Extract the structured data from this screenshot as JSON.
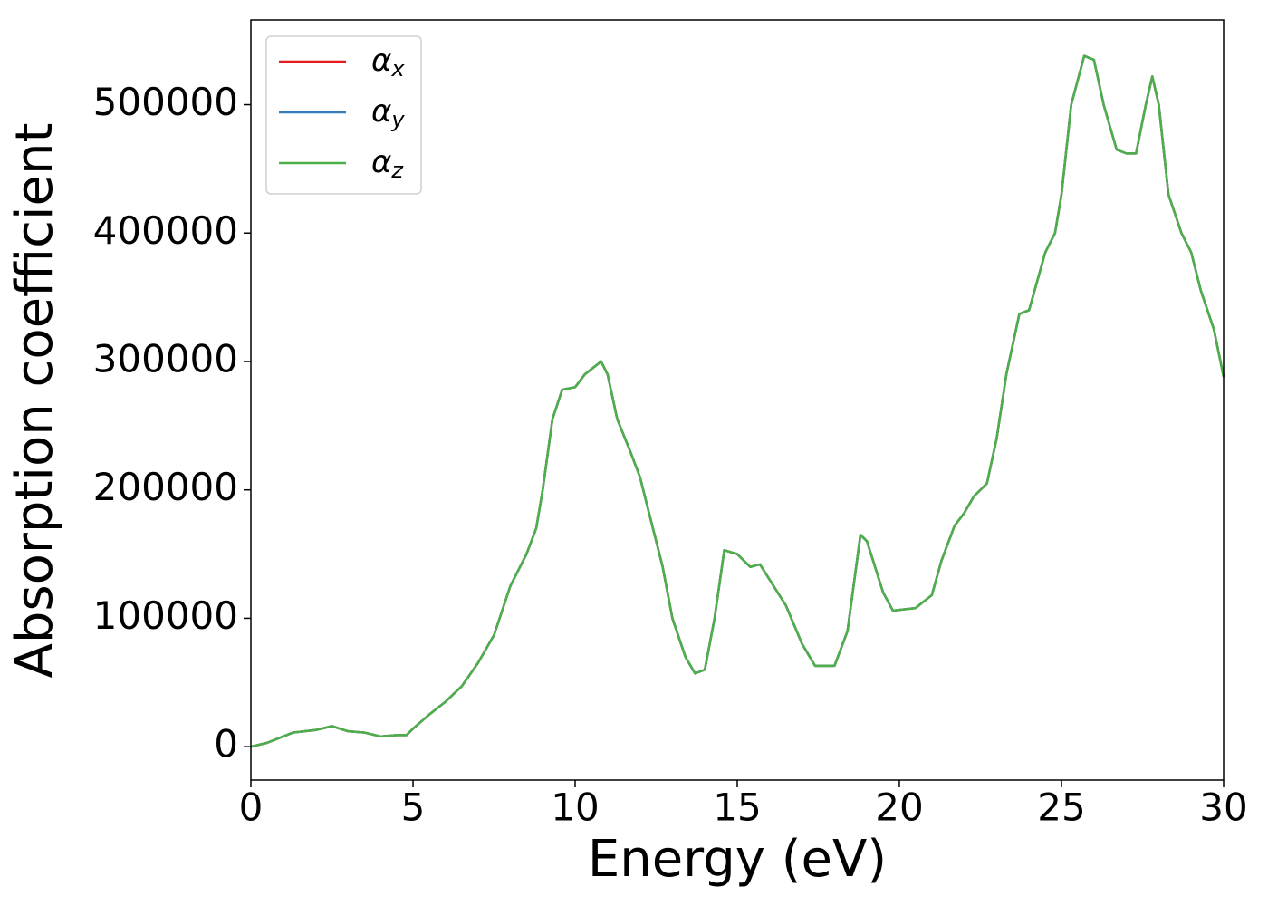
{
  "chart_data": {
    "type": "line",
    "xlabel": "Energy (eV)",
    "ylabel": "Absorption coefficient",
    "x": [
      0,
      0.5,
      1,
      1.3,
      2,
      2.5,
      3,
      3.5,
      4,
      4.5,
      4.8,
      5,
      5.5,
      6,
      6.5,
      7,
      7.5,
      8,
      8.5,
      8.8,
      9,
      9.3,
      9.6,
      10,
      10.3,
      10.8,
      11,
      11.3,
      11.7,
      12,
      12.3,
      12.7,
      13,
      13.4,
      13.7,
      14,
      14.3,
      14.6,
      15,
      15.4,
      15.7,
      16,
      16.5,
      17,
      17.4,
      18,
      18.4,
      18.8,
      19,
      19.5,
      19.8,
      20.5,
      21,
      21.3,
      21.7,
      22,
      22.3,
      22.7,
      23,
      23.3,
      23.7,
      24,
      24.5,
      24.8,
      25,
      25.3,
      25.7,
      26,
      26.3,
      26.7,
      27,
      27.3,
      27.6,
      27.8,
      28,
      28.3,
      28.7,
      29,
      29.3,
      29.7,
      30
    ],
    "series": [
      {
        "name": "αx",
        "color": "#e41a1c",
        "values": [
          0,
          3000,
          8000,
          11000,
          13000,
          16000,
          12000,
          11000,
          8000,
          9000,
          9000,
          14000,
          25000,
          35000,
          47000,
          65000,
          87000,
          125000,
          150000,
          170000,
          200000,
          255000,
          278000,
          280000,
          290000,
          300000,
          290000,
          255000,
          230000,
          210000,
          180000,
          140000,
          100000,
          70000,
          57000,
          60000,
          100000,
          153000,
          150000,
          140000,
          142000,
          130000,
          110000,
          80000,
          63000,
          63000,
          90000,
          165000,
          160000,
          120000,
          106000,
          108000,
          118000,
          145000,
          172000,
          182000,
          195000,
          205000,
          240000,
          290000,
          337000,
          340000,
          385000,
          400000,
          430000,
          500000,
          538000,
          535000,
          500000,
          465000,
          462000,
          462000,
          500000,
          522000,
          500000,
          430000,
          400000,
          385000,
          355000,
          325000,
          288000
        ]
      },
      {
        "name": "αy",
        "color": "#377eb8",
        "values": [
          0,
          3000,
          8000,
          11000,
          13000,
          16000,
          12000,
          11000,
          8000,
          9000,
          9000,
          14000,
          25000,
          35000,
          47000,
          65000,
          87000,
          125000,
          150000,
          170000,
          200000,
          255000,
          278000,
          280000,
          290000,
          300000,
          290000,
          255000,
          230000,
          210000,
          180000,
          140000,
          100000,
          70000,
          57000,
          60000,
          100000,
          153000,
          150000,
          140000,
          142000,
          130000,
          110000,
          80000,
          63000,
          63000,
          90000,
          165000,
          160000,
          120000,
          106000,
          108000,
          118000,
          145000,
          172000,
          182000,
          195000,
          205000,
          240000,
          290000,
          337000,
          340000,
          385000,
          400000,
          430000,
          500000,
          538000,
          535000,
          500000,
          465000,
          462000,
          462000,
          500000,
          522000,
          500000,
          430000,
          400000,
          385000,
          355000,
          325000,
          288000
        ]
      },
      {
        "name": "αz",
        "color": "#4daf4a",
        "values": [
          0,
          3000,
          8000,
          11000,
          13000,
          16000,
          12000,
          11000,
          8000,
          9000,
          9000,
          14000,
          25000,
          35000,
          47000,
          65000,
          87000,
          125000,
          150000,
          170000,
          200000,
          255000,
          278000,
          280000,
          290000,
          300000,
          290000,
          255000,
          230000,
          210000,
          180000,
          140000,
          100000,
          70000,
          57000,
          60000,
          100000,
          153000,
          150000,
          140000,
          142000,
          130000,
          110000,
          80000,
          63000,
          63000,
          90000,
          165000,
          160000,
          120000,
          106000,
          108000,
          118000,
          145000,
          172000,
          182000,
          195000,
          205000,
          240000,
          290000,
          337000,
          340000,
          385000,
          400000,
          430000,
          500000,
          538000,
          535000,
          500000,
          465000,
          462000,
          462000,
          500000,
          522000,
          500000,
          430000,
          400000,
          385000,
          355000,
          325000,
          288000
        ]
      }
    ],
    "xlim": [
      0,
      30
    ],
    "xticks": [
      0,
      5,
      10,
      15,
      20,
      25,
      30
    ],
    "ylim": [
      -26000,
      566000
    ],
    "yticks": [
      0,
      100000,
      200000,
      300000,
      400000,
      500000
    ],
    "grid": false,
    "legend": "upper left"
  }
}
